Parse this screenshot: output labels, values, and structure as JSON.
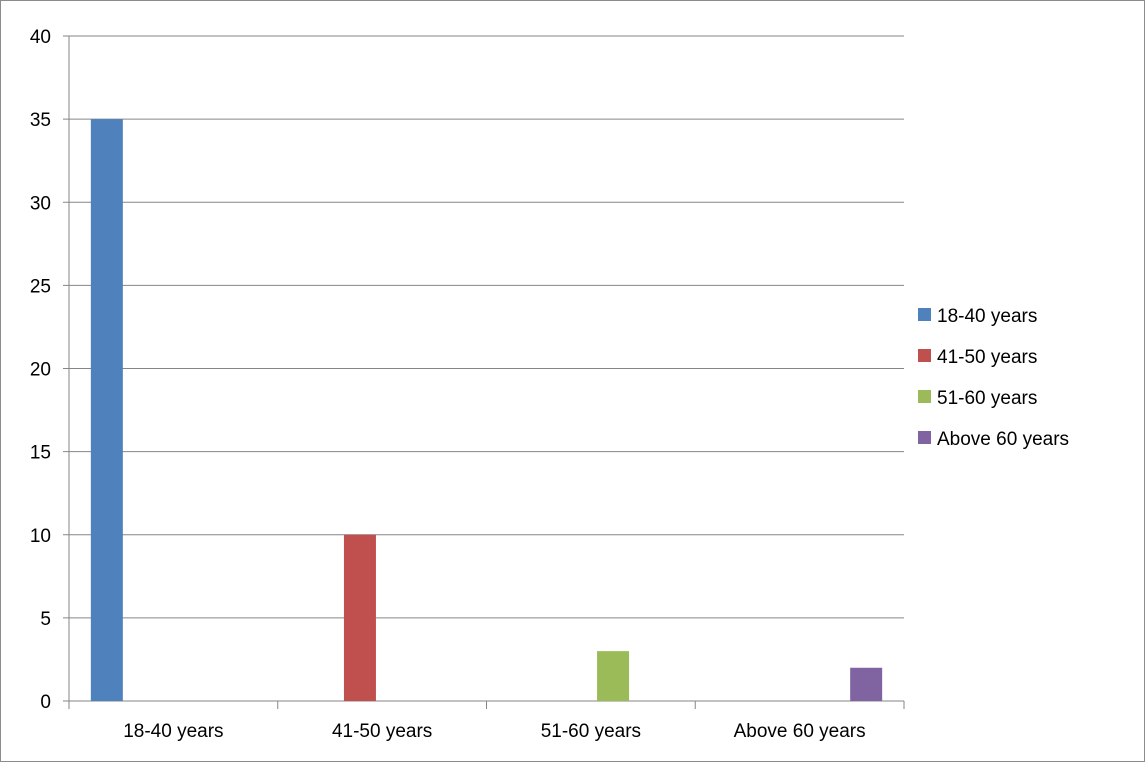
{
  "chart_data": {
    "type": "bar",
    "categories": [
      "18-40 years",
      "41-50 years",
      "51-60 years",
      "Above 60 years"
    ],
    "series": [
      {
        "name": "18-40 years",
        "values": [
          35,
          null,
          null,
          null
        ],
        "color": "#4F81BD"
      },
      {
        "name": "41-50 years",
        "values": [
          null,
          10,
          null,
          null
        ],
        "color": "#C0504D"
      },
      {
        "name": "51-60 years",
        "values": [
          null,
          null,
          3,
          null
        ],
        "color": "#9BBB59"
      },
      {
        "name": "Above 60 years",
        "values": [
          null,
          null,
          null,
          2
        ],
        "color": "#8064A2"
      }
    ],
    "title": "",
    "xlabel": "",
    "ylabel": "",
    "ylim": [
      0,
      40
    ],
    "yticks": [
      0,
      5,
      10,
      15,
      20,
      25,
      30,
      35,
      40
    ],
    "grid": "horizontal",
    "legend": "right"
  }
}
